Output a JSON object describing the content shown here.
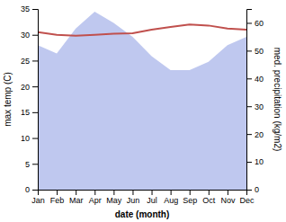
{
  "chart_data": {
    "type": "line",
    "x_label": "date (month)",
    "y_label": "max temp (C)",
    "y2_label": "med. precipitation (kg/m2)",
    "categories": [
      "Jan",
      "Feb",
      "Mar",
      "Apr",
      "May",
      "Jun",
      "Jul",
      "Aug",
      "Sep",
      "Oct",
      "Nov",
      "Dec"
    ],
    "series": [
      {
        "type": "area",
        "axis": "y2",
        "color": "#bfc8ef",
        "values": [
          52,
          49,
          58,
          64,
          60,
          55,
          48,
          43,
          43,
          46,
          52,
          55
        ]
      },
      {
        "type": "line",
        "color": "#c0504d",
        "values": [
          30.5,
          30.0,
          29.8,
          30.0,
          30.2,
          30.3,
          31.0,
          31.5,
          32.0,
          31.8,
          31.2,
          31.0
        ]
      }
    ],
    "ylim": [
      0,
      35
    ],
    "yticks": [
      0,
      5,
      10,
      15,
      20,
      25,
      30,
      35
    ],
    "y2lim": [
      0,
      65
    ],
    "y2ticks": [
      0,
      10,
      20,
      30,
      40,
      50,
      60
    ],
    "grid": false
  }
}
